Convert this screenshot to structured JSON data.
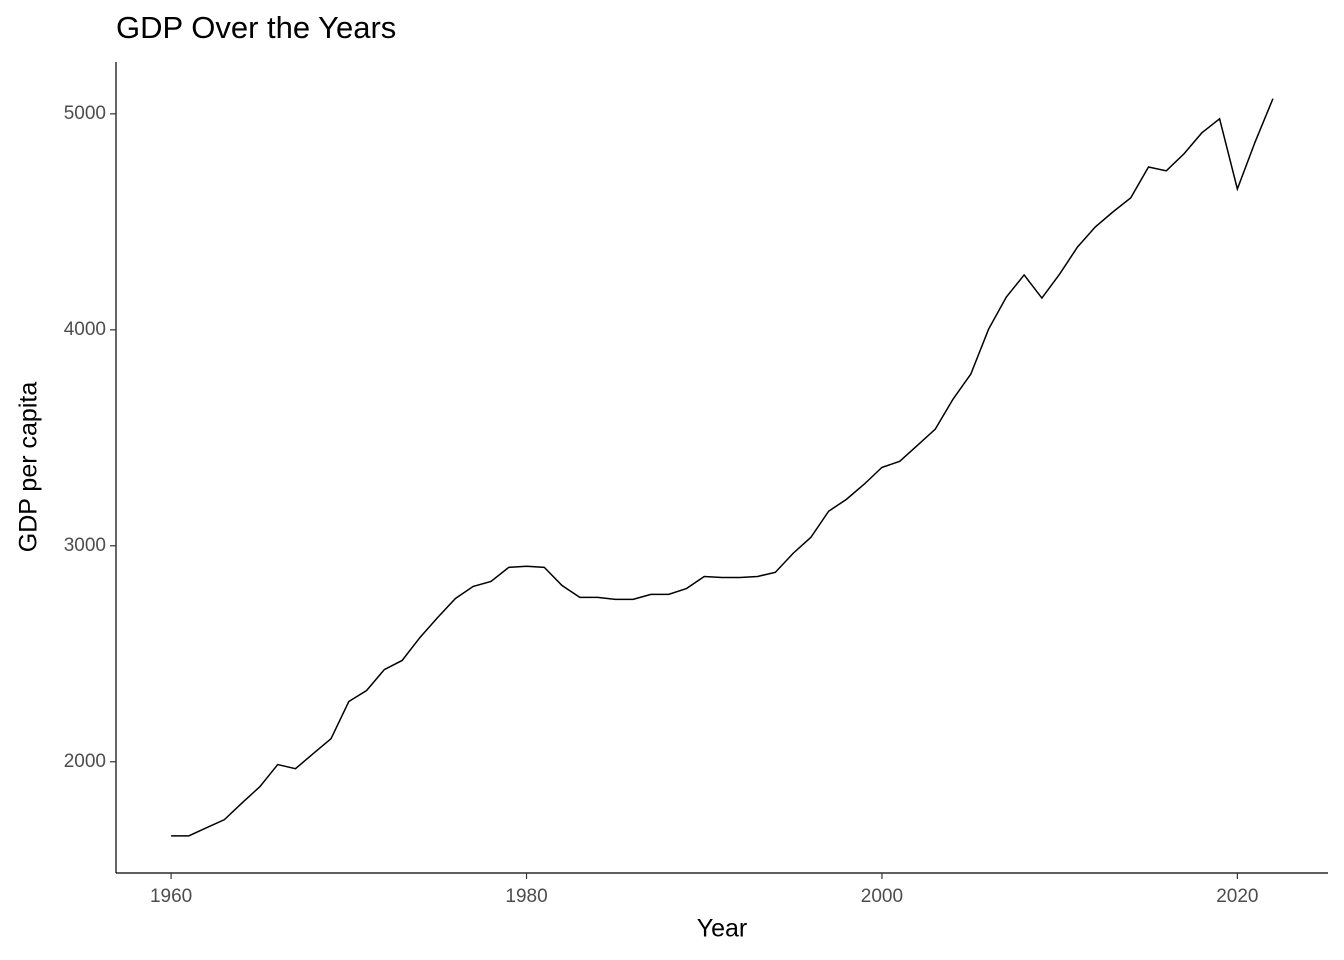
{
  "chart_data": {
    "type": "line",
    "title": "GDP Over the Years",
    "x_label": "Year",
    "y_label": "GDP per capita",
    "x": [
      1960,
      1961,
      1962,
      1963,
      1964,
      1965,
      1966,
      1967,
      1968,
      1969,
      1970,
      1971,
      1972,
      1973,
      1974,
      1975,
      1976,
      1977,
      1978,
      1979,
      1980,
      1981,
      1982,
      1983,
      1984,
      1985,
      1986,
      1987,
      1988,
      1989,
      1990,
      1991,
      1992,
      1993,
      1994,
      1995,
      1996,
      1997,
      1998,
      1999,
      2000,
      2001,
      2002,
      2003,
      2004,
      2005,
      2006,
      2007,
      2008,
      2009,
      2010,
      2011,
      2012,
      2013,
      2014,
      2015,
      2016,
      2017,
      2018,
      2019,
      2020,
      2021,
      2022
    ],
    "series": [
      {
        "color": "#000000",
        "values": [
          1657,
          1657,
          1695,
          1732,
          1810,
          1885,
          1987,
          1968,
          2038,
          2107,
          2279,
          2330,
          2427,
          2469,
          2575,
          2668,
          2756,
          2812,
          2835,
          2900,
          2905,
          2900,
          2816,
          2761,
          2761,
          2752,
          2752,
          2775,
          2775,
          2802,
          2858,
          2853,
          2853,
          2858,
          2877,
          2965,
          3039,
          3160,
          3215,
          3285,
          3363,
          3391,
          3465,
          3540,
          3679,
          3795,
          4003,
          4152,
          4254,
          4147,
          4258,
          4383,
          4476,
          4546,
          4611,
          4754,
          4736,
          4815,
          4912,
          4977,
          4652,
          4870,
          5070
        ]
      }
    ],
    "xlim": [
      1956.9,
      2025.1
    ],
    "xticks": [
      1960,
      1980,
      2000,
      2020
    ],
    "ylim": [
      1485,
      5240
    ],
    "yticks": [
      2000,
      3000,
      4000,
      5000
    ],
    "grid": false
  }
}
